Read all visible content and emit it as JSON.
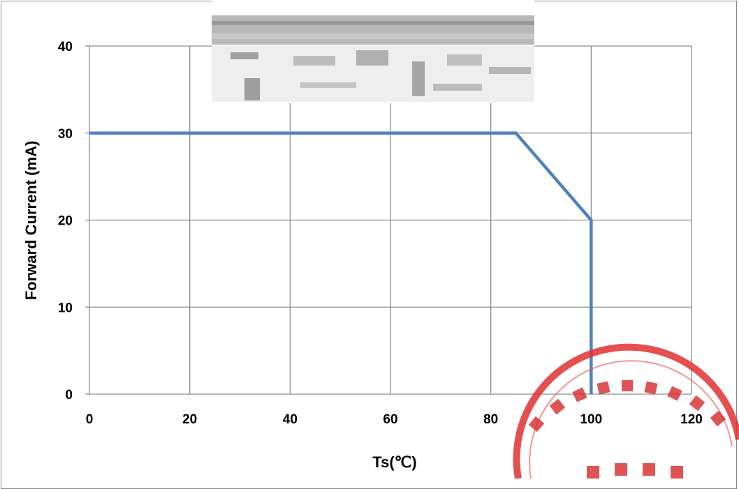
{
  "chart_data": {
    "type": "line",
    "title": "",
    "xlabel": "Ts(℃)",
    "ylabel": "Forward Current (mA)",
    "xlim": [
      0,
      120
    ],
    "ylim": [
      0,
      40
    ],
    "x_ticks": [
      0,
      20,
      40,
      60,
      80,
      100,
      120
    ],
    "y_ticks": [
      0,
      10,
      20,
      30,
      40
    ],
    "grid": true,
    "legend": "none",
    "series": [
      {
        "x": [
          0,
          85,
          100,
          100
        ],
        "y": [
          30,
          30,
          20,
          0
        ],
        "color": "#4F81BD"
      }
    ]
  },
  "colors": {
    "line": "#4F81BD",
    "grid": "#8c8c8c",
    "stamp": "#e03030"
  }
}
